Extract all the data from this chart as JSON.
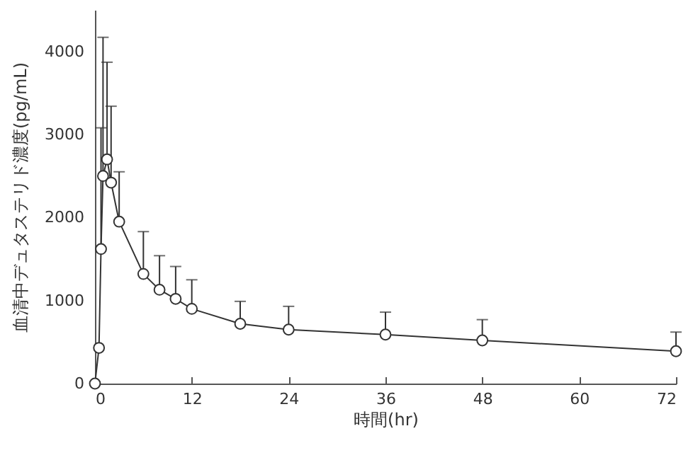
{
  "chart_data": {
    "type": "line",
    "xlabel": "時間(hr)",
    "ylabel": "血清中デュタステリド濃度(pg/mL)",
    "x": [
      0,
      0.5,
      0.75,
      1,
      1.5,
      2,
      3,
      6,
      8,
      10,
      12,
      18,
      24,
      36,
      48,
      72
    ],
    "xlim": [
      0,
      72
    ],
    "xticks": [
      0,
      12,
      24,
      36,
      48,
      60,
      72
    ],
    "ylim": [
      0,
      4500
    ],
    "yticks": [
      0,
      1000,
      2000,
      3000,
      4000
    ],
    "series": [
      {
        "color": "#333333",
        "values": [
          0,
          430,
          1620,
          2500,
          2700,
          2420,
          1950,
          1320,
          1130,
          1020,
          900,
          720,
          650,
          590,
          520,
          390
        ],
        "errors": [
          null,
          null,
          [
            1620,
            3080
          ],
          [
            2500,
            4170
          ],
          [
            2700,
            3870
          ],
          [
            2420,
            3340
          ],
          [
            1950,
            2550
          ],
          [
            1320,
            1830
          ],
          [
            1130,
            1540
          ],
          [
            1020,
            1410
          ],
          [
            900,
            1250
          ],
          [
            720,
            990
          ],
          [
            650,
            930
          ],
          [
            590,
            860
          ],
          [
            520,
            770
          ],
          [
            390,
            620
          ]
        ]
      }
    ],
    "marker": "circle",
    "line_style": "solid",
    "grid": false
  }
}
